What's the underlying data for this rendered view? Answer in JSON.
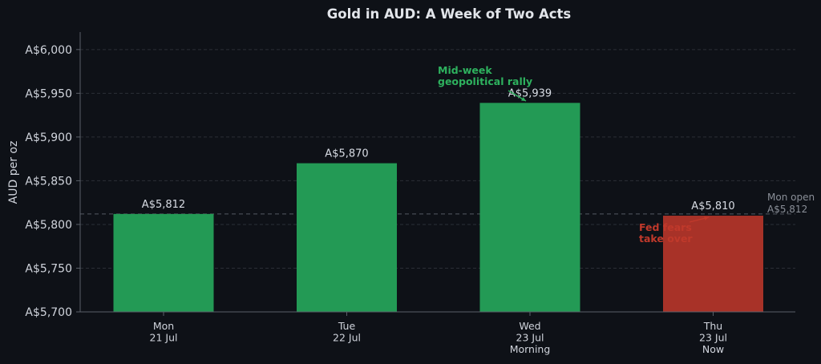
{
  "chart_data": {
    "type": "bar",
    "title": "Gold in AUD: A Week of Two Acts",
    "ylabel": "AUD per oz",
    "ylim": [
      5700,
      6020
    ],
    "yticks": [
      5700,
      5750,
      5800,
      5850,
      5900,
      5950,
      6000
    ],
    "ytick_labels": [
      "A$5,700",
      "A$5,750",
      "A$5,800",
      "A$5,850",
      "A$5,900",
      "A$5,950",
      "A$6,000"
    ],
    "grid": "horizontal dashed",
    "categories": [
      [
        "Mon",
        "21 Jul"
      ],
      [
        "Tue",
        "22 Jul"
      ],
      [
        "Wed",
        "23 Jul",
        "Morning"
      ],
      [
        "Thu",
        "23 Jul",
        "Now"
      ]
    ],
    "values": [
      5812,
      5870,
      5939,
      5810
    ],
    "value_labels": [
      "A$5,812",
      "A$5,870",
      "A$5,939",
      "A$5,810"
    ],
    "bar_colors": [
      "#239a55",
      "#239a55",
      "#239a55",
      "#a83228"
    ],
    "reference_line": {
      "value": 5812,
      "label_lines": [
        "Mon open",
        "A$5,812"
      ],
      "color": "#555a63"
    },
    "annotations": [
      {
        "lines": [
          "Mid-week",
          "geopolitical rally"
        ],
        "color": "#2eb15e",
        "target_index": 2
      },
      {
        "lines": [
          "Fed fears",
          "take over"
        ],
        "color": "#c0392b",
        "target_index": 3
      }
    ]
  }
}
